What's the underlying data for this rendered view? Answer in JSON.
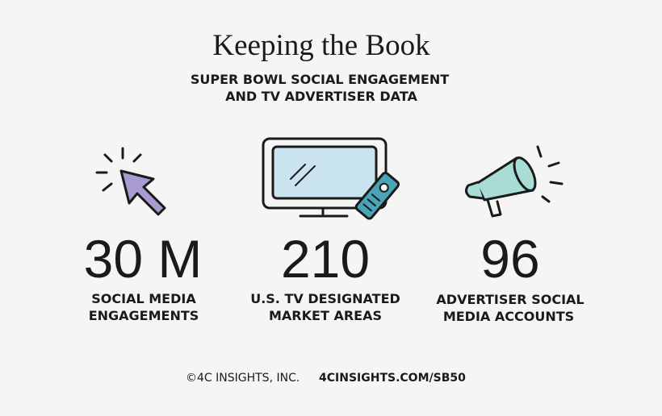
{
  "header": {
    "title": "Keeping the Book",
    "subtitle": [
      "SUPER BOWL SOCIAL ENGAGEMENT",
      "AND TV ADVERTISER DATA"
    ]
  },
  "stats": [
    {
      "value": "30 M",
      "label": [
        "SOCIAL MEDIA",
        "ENGAGEMENTS"
      ]
    },
    {
      "value": "210",
      "label": [
        "U.S. TV DESIGNATED",
        "MARKET AREAS"
      ]
    },
    {
      "value": "96",
      "label": [
        "ADVERTISER SOCIAL",
        "MEDIA ACCOUNTS"
      ]
    }
  ],
  "footer": {
    "copyright": "©4C INSIGHTS, INC.",
    "url": "4CINSIGHTS.COM/SB50"
  }
}
